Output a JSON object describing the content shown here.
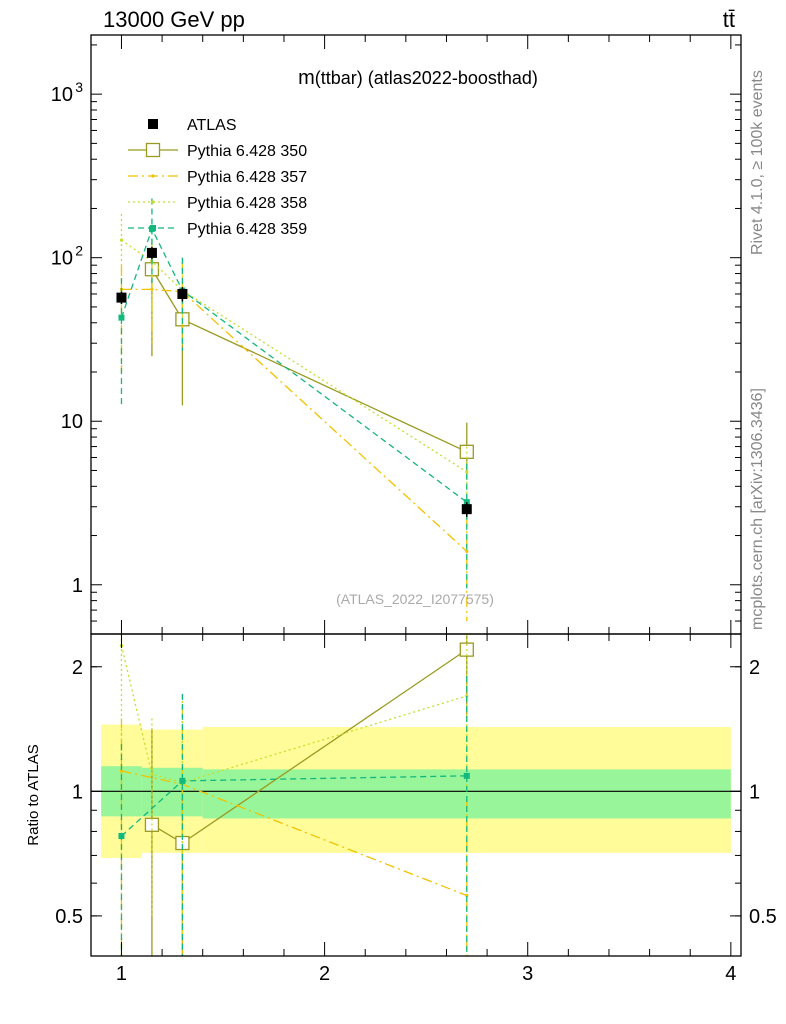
{
  "header": {
    "energy_label": "13000 GeV pp",
    "process_label": "tt̄"
  },
  "side_text": {
    "rivet": "Rivet 4.1.0, ≥ 100k events",
    "source": "mcplots.cern.ch [arXiv:1306.3436]"
  },
  "colors": {
    "data": "#000000",
    "p350": "#9a9a22",
    "p357": "#f2c200",
    "p358": "#c7dd2b",
    "p359": "#12b87c",
    "band_inner": "#99f599",
    "band_outer": "#fffc99",
    "frame": "#000000"
  },
  "chart_data": [
    {
      "type": "scatter",
      "title": "m(ttbar) (atlas2022-boosthad)",
      "title_prefix": "m",
      "title_rest": "(ttbar) (atlas2022-boosthad)",
      "watermark": "(ATLAS_2022_I2077575)",
      "xlim": [
        0.85,
        4.05
      ],
      "ylim": [
        0.5,
        2300
      ],
      "yscale": "log",
      "x_ticks": [
        1,
        2,
        3,
        4
      ],
      "y_ticks": [
        {
          "value": 1,
          "label": "1"
        },
        {
          "value": 10,
          "label": "10"
        },
        {
          "value": 100,
          "label": "10",
          "exp": "2"
        },
        {
          "value": 1000,
          "label": "10",
          "exp": "3"
        }
      ],
      "legend": [
        {
          "key": "data",
          "label": "ATLAS"
        },
        {
          "key": "p350",
          "label": "Pythia 6.428 350"
        },
        {
          "key": "p357",
          "label": "Pythia 6.428 357"
        },
        {
          "key": "p358",
          "label": "Pythia 6.428 358"
        },
        {
          "key": "p359",
          "label": "Pythia 6.428 359"
        }
      ],
      "data": {
        "name": "ATLAS",
        "x": [
          1.0,
          1.15,
          1.3,
          2.7
        ],
        "y": [
          57,
          107,
          60,
          2.9
        ],
        "yerr": [
          5,
          9,
          6,
          0.3
        ]
      },
      "series": [
        {
          "key": "p350",
          "name": "Pythia 6.428 350",
          "style": "solid",
          "marker": "open-square",
          "x": [
            1.15,
            1.3,
            2.7
          ],
          "y": [
            85,
            42,
            6.5
          ],
          "ylo": [
            25,
            12.5,
            4.4
          ],
          "yhi": [
            125,
            65,
            9.8
          ]
        },
        {
          "key": "p357",
          "name": "Pythia 6.428 357",
          "style": "dashdot",
          "marker": "dot",
          "x": [
            1.0,
            1.15,
            1.3,
            2.7
          ],
          "y": [
            64,
            64,
            62,
            1.6
          ],
          "ylo": [
            20,
            30,
            30,
            0.6
          ],
          "yhi": [
            90,
            95,
            95,
            2.6
          ]
        },
        {
          "key": "p358",
          "name": "Pythia 6.428 358",
          "style": "dotted",
          "marker": "dot",
          "x": [
            1.0,
            1.15,
            1.3,
            2.7
          ],
          "y": [
            128,
            95,
            63,
            4.9
          ],
          "ylo": [
            55,
            40,
            27,
            3.0
          ],
          "yhi": [
            185,
            130,
            100,
            7.0
          ]
        },
        {
          "key": "p359",
          "name": "Pythia 6.428 359",
          "style": "dashed",
          "marker": "filled-square",
          "x": [
            1.0,
            1.15,
            1.3,
            2.7
          ],
          "y": [
            43,
            150,
            63,
            3.2
          ],
          "ylo": [
            12.5,
            70,
            27,
            0.95
          ],
          "yhi": [
            75,
            230,
            100,
            5.5
          ]
        }
      ]
    },
    {
      "type": "scatter",
      "title": "Ratio to ATLAS",
      "ylabel": "Ratio to ATLAS",
      "xlim": [
        0.85,
        4.05
      ],
      "ylim": [
        0.4,
        2.4
      ],
      "yscale": "log",
      "x_ticks": [
        1,
        2,
        3,
        4
      ],
      "y_ticks": [
        {
          "value": 0.5,
          "label": "0.5"
        },
        {
          "value": 1,
          "label": "1"
        },
        {
          "value": 2,
          "label": "2"
        }
      ],
      "reference_line": 1,
      "bands": [
        {
          "x_from": 0.9,
          "x_to": 1.1,
          "inner": [
            0.87,
            1.15
          ],
          "outer": [
            0.69,
            1.45
          ]
        },
        {
          "x_from": 1.1,
          "x_to": 1.4,
          "inner": [
            0.87,
            1.14
          ],
          "outer": [
            0.71,
            1.41
          ]
        },
        {
          "x_from": 1.4,
          "x_to": 4.0,
          "inner": [
            0.86,
            1.13
          ],
          "outer": [
            0.71,
            1.43
          ]
        }
      ],
      "series": [
        {
          "key": "p350",
          "name": "Pythia 6.428 350",
          "style": "solid",
          "marker": "open-square",
          "x": [
            1.15,
            1.3,
            2.7
          ],
          "y": [
            0.83,
            0.75,
            2.2
          ],
          "ylo": [
            0.2,
            0.2,
            1.5
          ],
          "yhi": [
            1.42,
            1.1,
            2.4
          ]
        },
        {
          "key": "p357",
          "name": "Pythia 6.428 357",
          "style": "dashdot",
          "marker": "dot",
          "x": [
            1.0,
            1.3,
            2.7
          ],
          "y": [
            1.12,
            1.04,
            0.56
          ],
          "ylo": [
            0.35,
            0.4,
            0.2
          ],
          "yhi": [
            1.5,
            1.6,
            0.95
          ]
        },
        {
          "key": "p358",
          "name": "Pythia 6.428 358",
          "style": "dotted",
          "marker": "dot",
          "x": [
            1.0,
            1.15,
            1.3,
            2.7
          ],
          "y": [
            2.25,
            1.1,
            1.05,
            1.7
          ],
          "ylo": [
            1.0,
            0.5,
            0.45,
            1.0
          ],
          "yhi": [
            2.4,
            1.5,
            1.7,
            2.4
          ]
        },
        {
          "key": "p359",
          "name": "Pythia 6.428 359",
          "style": "dashed",
          "marker": "filled-square",
          "x": [
            1.0,
            1.3,
            2.7
          ],
          "y": [
            0.78,
            1.06,
            1.09
          ],
          "ylo": [
            0.3,
            0.4,
            0.3
          ],
          "yhi": [
            1.3,
            1.72,
            1.9
          ]
        }
      ]
    }
  ]
}
